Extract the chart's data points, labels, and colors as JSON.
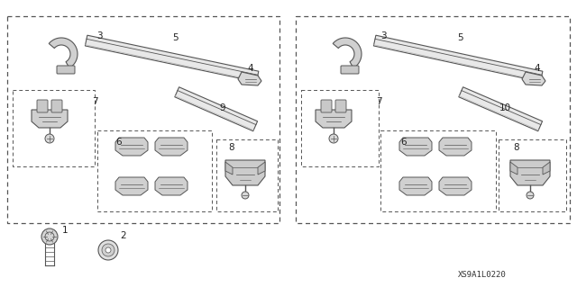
{
  "bg_color": "#ffffff",
  "line_color": "#555555",
  "fig_w": 6.4,
  "fig_h": 3.19,
  "dpi": 100,
  "diagram_code": "XS9A1L0220"
}
